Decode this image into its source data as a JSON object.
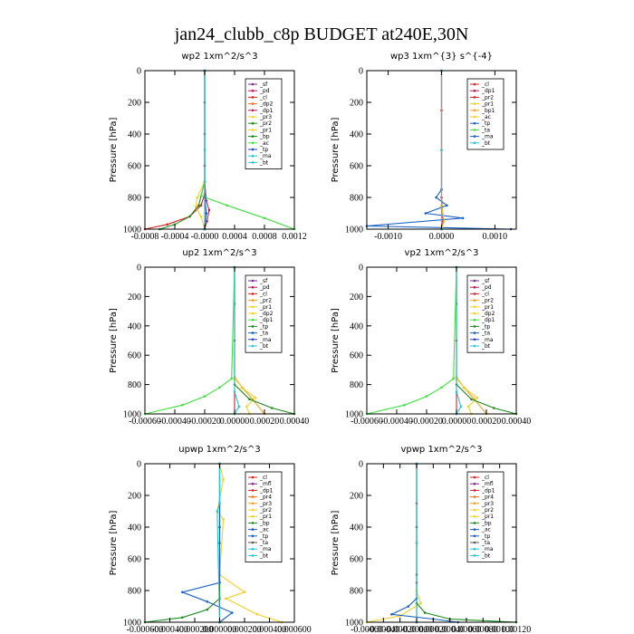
{
  "figure": {
    "title": "jan24_clubb_c8p  BUDGET at240E,30N"
  },
  "chart_data": [
    {
      "type": "line",
      "title": "wp2  1xm^2/s^3",
      "ylabel": "Pressure [hPa]",
      "xlim": [
        -0.0008,
        0.0012
      ],
      "ylim": [
        1000,
        0
      ],
      "xticks": [
        -0.0008,
        -0.0004,
        0.0,
        0.0004,
        0.0008,
        0.0012
      ],
      "xtick_labels": [
        "-0.0008",
        "-0.0004",
        "-0.0000",
        "0.0004",
        "0.0008",
        "0.0012"
      ],
      "yticks": [
        0,
        200,
        400,
        600,
        800,
        1000
      ],
      "ytick_labels": [
        "0",
        "200",
        "400",
        "600",
        "800",
        "1000"
      ],
      "legend": [
        "_sf",
        "_pd",
        "_cl",
        "_dp2",
        "_dp1",
        "_pr3",
        "_pr2",
        "_pr1",
        "_bp",
        "_ac",
        "_tp",
        "_ma",
        "_bt"
      ],
      "series": [
        {
          "name": "_sf",
          "color": "#7a2a8a",
          "x": [
            0,
            0,
            0,
            0,
            0,
            0
          ],
          "y": [
            0,
            200,
            400,
            600,
            800,
            1000
          ]
        },
        {
          "name": "_cl",
          "color": "#d42020",
          "x": [
            0,
            0,
            0,
            -5e-05,
            -0.0002,
            -0.0005,
            -0.0008
          ],
          "y": [
            0,
            600,
            780,
            850,
            920,
            970,
            1000
          ]
        },
        {
          "name": "_dp1",
          "color": "#c01850",
          "x": [
            0,
            0,
            2e-05,
            6e-05,
            3e-05,
            0
          ],
          "y": [
            0,
            700,
            820,
            880,
            950,
            1000
          ]
        },
        {
          "name": "_pr1",
          "color": "#f0d020",
          "x": [
            0,
            0,
            -0.0001,
            -0.00012,
            -5e-05,
            0
          ],
          "y": [
            0,
            700,
            800,
            860,
            920,
            1000
          ]
        },
        {
          "name": "_bp",
          "color": "#1a8a1a",
          "x": [
            0,
            0,
            -8e-05,
            -0.0002,
            -0.0004,
            -0.0006
          ],
          "y": [
            0,
            700,
            850,
            920,
            970,
            1000
          ]
        },
        {
          "name": "_ac",
          "color": "#40e040",
          "x": [
            0,
            0.0,
            -5e-05,
            0.0003,
            0.0008,
            0.0012
          ],
          "y": [
            0,
            700,
            790,
            850,
            930,
            1000
          ]
        },
        {
          "name": "_tp",
          "color": "#2040c0",
          "x": [
            0,
            0,
            2e-05,
            0
          ],
          "y": [
            0,
            800,
            900,
            1000
          ]
        },
        {
          "name": "_bt",
          "color": "#20c8d8",
          "x": [
            0,
            0,
            0
          ],
          "y": [
            0,
            500,
            1000
          ]
        }
      ]
    },
    {
      "type": "line",
      "title": "wp3  1xm^{3} s^{-4}",
      "ylabel": "Pressure [hPa]",
      "xlim": [
        -0.0014,
        0.0014
      ],
      "ylim": [
        1000,
        0
      ],
      "xticks": [
        -0.001,
        0.0,
        0.001
      ],
      "xtick_labels": [
        "-0.0010",
        "0.0000",
        "0.0010"
      ],
      "yticks": [
        0,
        200,
        400,
        600,
        800,
        1000
      ],
      "ytick_labels": [
        "0",
        "200",
        "400",
        "600",
        "800",
        "1000"
      ],
      "legend": [
        "_cl",
        "_dp1",
        "_pr2",
        "_pr1",
        "_bp1",
        "_ac",
        "_tp",
        "_ta",
        "_ma",
        "_bt"
      ],
      "series": [
        {
          "name": "_cl",
          "color": "#d42020",
          "x": [
            0,
            0,
            0,
            0,
            0
          ],
          "y": [
            0,
            250,
            500,
            750,
            1000
          ]
        },
        {
          "name": "_dp1",
          "color": "#c01850",
          "x": [
            0,
            0,
            3e-05,
            0
          ],
          "y": [
            0,
            800,
            950,
            1000
          ]
        },
        {
          "name": "_tp",
          "color": "#1860c0",
          "x": [
            0,
            0,
            -0.0001,
            0.0001,
            -0.0003,
            0.0004,
            -0.0014,
            0.0013
          ],
          "y": [
            0,
            750,
            800,
            850,
            900,
            930,
            980,
            1000
          ]
        },
        {
          "name": "_pr1",
          "color": "#f0d020",
          "x": [
            0,
            0,
            5e-05,
            0
          ],
          "y": [
            0,
            850,
            950,
            1000
          ]
        },
        {
          "name": "_bt",
          "color": "#20c8d8",
          "x": [
            0,
            0,
            0
          ],
          "y": [
            0,
            500,
            1000
          ]
        }
      ]
    },
    {
      "type": "line",
      "title": "up2  1xm^2/s^3",
      "ylabel": "Pressure [hPa]",
      "xlim": [
        -0.0006,
        0.0004
      ],
      "ylim": [
        1000,
        0
      ],
      "xticks": [
        -0.0006,
        -0.0004,
        -0.0002,
        0.0,
        0.0002,
        0.0004
      ],
      "xtick_labels": [
        "-0.00060",
        "-0.00040",
        "-0.00020",
        "0.00000",
        "0.00020",
        "0.00040"
      ],
      "yticks": [
        0,
        200,
        400,
        600,
        800,
        1000
      ],
      "ytick_labels": [
        "0",
        "200",
        "400",
        "600",
        "800",
        "1000"
      ],
      "legend": [
        "_sf",
        "_pd",
        "_cl",
        "_pr2",
        "_pr1",
        "_dp2",
        "_dp1",
        "_tp",
        "_ta",
        "_ma",
        "_bt"
      ],
      "series": [
        {
          "name": "_cl",
          "color": "#d42020",
          "x": [
            0,
            0,
            0,
            0,
            0
          ],
          "y": [
            0,
            250,
            500,
            750,
            1000
          ]
        },
        {
          "name": "_pr2",
          "color": "#f0a020",
          "x": [
            0,
            0,
            5e-05,
            0.00012,
            0.0002
          ],
          "y": [
            0,
            750,
            820,
            900,
            1000
          ]
        },
        {
          "name": "_pr1",
          "color": "#f0d020",
          "x": [
            0,
            0,
            6e-05,
            0.00014,
            8e-05,
            0.0001
          ],
          "y": [
            0,
            760,
            830,
            890,
            950,
            1000
          ]
        },
        {
          "name": "_dp1",
          "color": "#40e040",
          "x": [
            0,
            -2e-05,
            -0.0001,
            -0.0002,
            -0.00035,
            -0.0006
          ],
          "y": [
            0,
            760,
            820,
            880,
            940,
            1000
          ]
        },
        {
          "name": "_tp",
          "color": "#1a8a1a",
          "x": [
            0,
            0,
            0.0001,
            0.00025,
            0.0004
          ],
          "y": [
            0,
            800,
            900,
            960,
            1000
          ]
        },
        {
          "name": "_bt",
          "color": "#20c8d8",
          "x": [
            0,
            0,
            3e-05,
            0
          ],
          "y": [
            0,
            850,
            950,
            1000
          ]
        }
      ]
    },
    {
      "type": "line",
      "title": "vp2  1xm^2/s^3",
      "ylabel": "Pressure [hPa]",
      "xlim": [
        -0.0006,
        0.0004
      ],
      "ylim": [
        1000,
        0
      ],
      "xticks": [
        -0.0006,
        -0.0004,
        -0.0002,
        0.0,
        0.0002,
        0.0004
      ],
      "xtick_labels": [
        "-0.00060",
        "-0.00040",
        "-0.00020",
        "0.00000",
        "0.00020",
        "0.00040"
      ],
      "yticks": [
        0,
        200,
        400,
        600,
        800,
        1000
      ],
      "ytick_labels": [
        "0",
        "200",
        "400",
        "600",
        "800",
        "1000"
      ],
      "legend": [
        "_sf",
        "_pd",
        "_cl",
        "_pr2",
        "_pr1",
        "_dp2",
        "_dp1",
        "_tp",
        "_ta",
        "_ma",
        "_bt"
      ],
      "series": [
        {
          "name": "_cl",
          "color": "#d42020",
          "x": [
            0,
            0,
            0,
            0,
            0
          ],
          "y": [
            0,
            250,
            500,
            750,
            1000
          ]
        },
        {
          "name": "_pr2",
          "color": "#f0a020",
          "x": [
            0,
            0,
            5e-05,
            0.00012,
            0.0002
          ],
          "y": [
            0,
            750,
            820,
            900,
            1000
          ]
        },
        {
          "name": "_pr1",
          "color": "#f0d020",
          "x": [
            0,
            0,
            6e-05,
            0.00014,
            8e-05,
            0.0001
          ],
          "y": [
            0,
            760,
            830,
            890,
            950,
            1000
          ]
        },
        {
          "name": "_dp1",
          "color": "#40e040",
          "x": [
            0,
            -2e-05,
            -0.0001,
            -0.0002,
            -0.00035,
            -0.0006
          ],
          "y": [
            0,
            760,
            820,
            880,
            940,
            1000
          ]
        },
        {
          "name": "_tp",
          "color": "#1a8a1a",
          "x": [
            0,
            0,
            0.0001,
            0.00025,
            0.0004
          ],
          "y": [
            0,
            800,
            900,
            960,
            1000
          ]
        },
        {
          "name": "_bt",
          "color": "#20c8d8",
          "x": [
            0,
            0,
            3e-05,
            0
          ],
          "y": [
            0,
            850,
            950,
            1000
          ]
        }
      ]
    },
    {
      "type": "line",
      "title": "upwp  1xm^2/s^3",
      "ylabel": "Pressure [hPa]",
      "xlim": [
        -0.0006,
        0.0006
      ],
      "ylim": [
        1000,
        0
      ],
      "xticks": [
        -0.0006,
        -0.0004,
        -0.0002,
        0.0,
        0.0002,
        0.0004,
        0.0006
      ],
      "xtick_labels": [
        "-0.000600",
        "-0.000400",
        "-0.000200",
        "0.000000",
        "0.000200",
        "0.000400",
        "0.000600"
      ],
      "yticks": [
        0,
        200,
        400,
        600,
        800,
        1000
      ],
      "ytick_labels": [
        "0",
        "200",
        "400",
        "600",
        "800",
        "1000"
      ],
      "legend": [
        "_cl",
        "_mfl",
        "_dp1",
        "_pr4",
        "_pr3",
        "_pr2",
        "_pr1",
        "_bp",
        "_ac",
        "_tp",
        "_ta",
        "_ma",
        "_bt"
      ],
      "series": [
        {
          "name": "_cl",
          "color": "#d42020",
          "x": [
            0,
            0,
            0,
            0,
            0
          ],
          "y": [
            0,
            250,
            500,
            750,
            1000
          ]
        },
        {
          "name": "_mfl",
          "color": "#7a2a8a",
          "x": [
            0,
            0,
            0,
            0
          ],
          "y": [
            0,
            400,
            700,
            1000
          ]
        },
        {
          "name": "_pr1",
          "color": "#f0d020",
          "x": [
            0,
            3e-05,
            -2e-05,
            3e-05,
            0,
            0.0002,
            5e-05,
            0.0003,
            0.0005
          ],
          "y": [
            0,
            100,
            300,
            350,
            700,
            810,
            850,
            950,
            1000
          ]
        },
        {
          "name": "_bp",
          "color": "#1a8a1a",
          "x": [
            0,
            0,
            -0.0001,
            -0.0003,
            -0.0006
          ],
          "y": [
            0,
            850,
            920,
            970,
            1000
          ]
        },
        {
          "name": "_tp",
          "color": "#1860c0",
          "x": [
            0,
            0,
            -0.0003,
            -0.0001,
            0.0001,
            0
          ],
          "y": [
            0,
            750,
            810,
            870,
            940,
            1000
          ]
        },
        {
          "name": "_bt",
          "color": "#20c8d8",
          "x": [
            0,
            0,
            -2e-05,
            0
          ],
          "y": [
            0,
            250,
            300,
            1000
          ]
        }
      ]
    },
    {
      "type": "line",
      "title": "vpwp  1xm^2/s^3",
      "ylabel": "Pressure [hPa]",
      "xlim": [
        -0.0006,
        0.0012
      ],
      "ylim": [
        1000,
        0
      ],
      "xticks": [
        -0.0006,
        -0.0004,
        -0.0002,
        0.0,
        0.0002,
        0.0004,
        0.0006,
        0.0008,
        0.001,
        0.0012
      ],
      "xtick_labels": [
        "-0.00060",
        "-0.00040",
        "-0.00020",
        "-0.00000",
        "0.00020",
        "0.00040",
        "0.00060",
        "0.00080",
        "0.00100",
        "0.00120"
      ],
      "yticks": [
        0,
        200,
        400,
        600,
        800,
        1000
      ],
      "ytick_labels": [
        "0",
        "200",
        "400",
        "600",
        "800",
        "1000"
      ],
      "legend": [
        "_cl",
        "_mfl",
        "_dp1",
        "_pr4",
        "_pr3",
        "_pr2",
        "_pr1",
        "_bp",
        "_ac",
        "_tp",
        "_ta",
        "_ma",
        "_bt"
      ],
      "series": [
        {
          "name": "_cl",
          "color": "#d42020",
          "x": [
            0,
            0,
            0,
            0,
            0
          ],
          "y": [
            0,
            250,
            500,
            750,
            1000
          ]
        },
        {
          "name": "_mfl",
          "color": "#7a2a8a",
          "x": [
            0,
            0,
            0,
            0
          ],
          "y": [
            0,
            400,
            700,
            1000
          ]
        },
        {
          "name": "_pr1",
          "color": "#f0d020",
          "x": [
            0,
            0,
            5e-05,
            -0.0002,
            -0.0006
          ],
          "y": [
            0,
            800,
            880,
            960,
            1000
          ]
        },
        {
          "name": "_bp",
          "color": "#1a8a1a",
          "x": [
            0,
            0,
            0.0001,
            0.0004,
            0.0012
          ],
          "y": [
            0,
            880,
            940,
            980,
            1000
          ]
        },
        {
          "name": "_tp",
          "color": "#1860c0",
          "x": [
            0,
            0,
            -0.0001,
            -0.0003,
            0.0002,
            0.0005
          ],
          "y": [
            0,
            850,
            900,
            950,
            980,
            1000
          ]
        },
        {
          "name": "_bt",
          "color": "#20c8d8",
          "x": [
            0,
            0,
            0
          ],
          "y": [
            0,
            500,
            1000
          ]
        }
      ]
    }
  ]
}
